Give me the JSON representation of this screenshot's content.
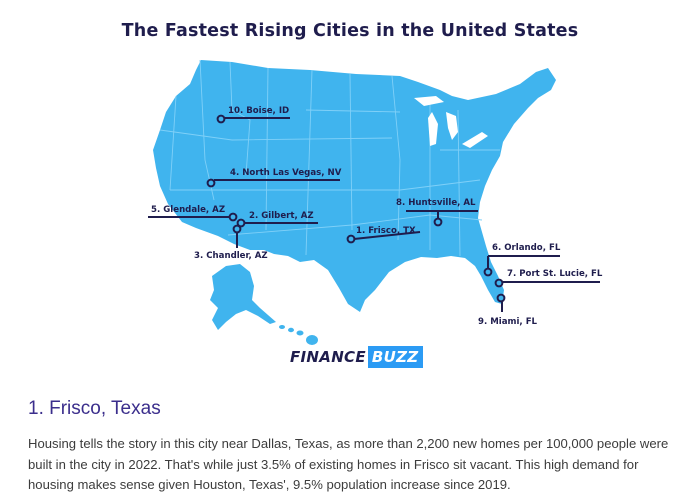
{
  "map": {
    "title": "The Fastest Rising Cities in the United States",
    "colors": {
      "land": "#40b4ee",
      "borders": "#7fd0f8",
      "ink": "#1f1d4d",
      "accent": "#2b9bf4"
    },
    "cities": [
      {
        "label": "1. Frisco, TX"
      },
      {
        "label": "2. Gilbert, AZ"
      },
      {
        "label": "3. Chandler, AZ"
      },
      {
        "label": "4. North Las Vegas, NV"
      },
      {
        "label": "5. Glendale, AZ"
      },
      {
        "label": "6. Orlando, FL"
      },
      {
        "label": "7. Port St. Lucie, FL"
      },
      {
        "label": "8. Huntsville, AL"
      },
      {
        "label": "9. Miami, FL"
      },
      {
        "label": "10. Boise, ID"
      }
    ],
    "logo": {
      "part1": "FINANCE",
      "part2": "BUZZ"
    }
  },
  "article": {
    "heading": "1. Frisco, Texas",
    "body": "Housing tells the story in this city near Dallas, Texas, as more than 2,200 new homes per 100,000 people were built in the city in 2022. That's while just 3.5% of existing homes in Frisco sit vacant. This high demand for housing makes sense given Houston, Texas', 9.5% population increase since 2019."
  }
}
